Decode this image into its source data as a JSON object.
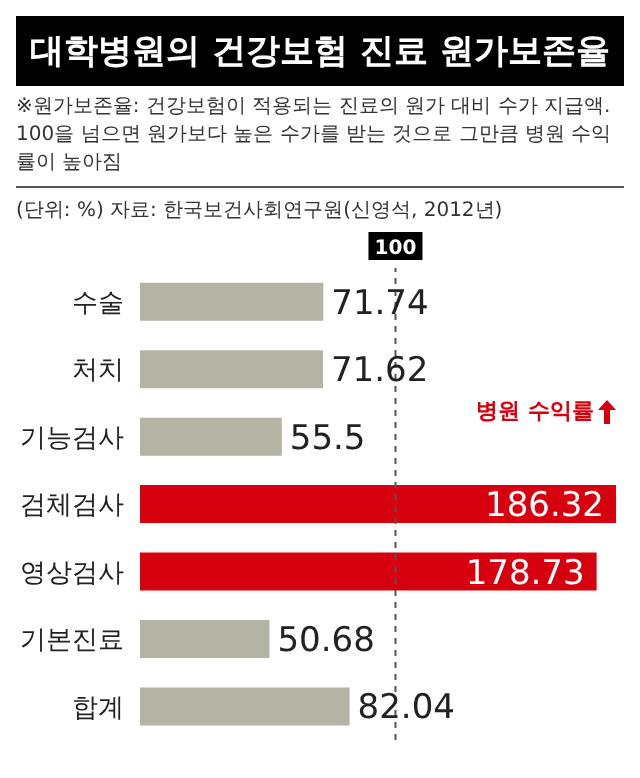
{
  "chart_data": {
    "type": "bar",
    "orientation": "horizontal",
    "title": "대학병원의 건강보험 진료 원가보존율",
    "subtitle": "※원가보존율: 건강보험이 적용되는 진료의 원가 대비 수가 지급액. 100을 넘으면 원가보다 높은 수가를 받는 것으로 그만큼 병원 수익률이 높아짐",
    "annotations": [
      "(단위: %) 자료: 한국보건사회연구원(신영석, 2012년)",
      "병원 수익률"
    ],
    "categories": [
      "수술",
      "처치",
      "기능검사",
      "검체검사",
      "영상검사",
      "기본진료",
      "합계"
    ],
    "values": [
      71.74,
      71.62,
      55.5,
      186.32,
      178.73,
      50.68,
      82.04
    ],
    "colors": [
      "#b5b3a3",
      "#b5b3a3",
      "#b5b3a3",
      "#d7000f",
      "#d7000f",
      "#b5b3a3",
      "#b5b3a3"
    ],
    "data_labels": true,
    "ref_lines": [
      {
        "axis": "x",
        "value": 100,
        "label": "100",
        "line_style": "dashed",
        "color": "#555555"
      }
    ]
  }
}
